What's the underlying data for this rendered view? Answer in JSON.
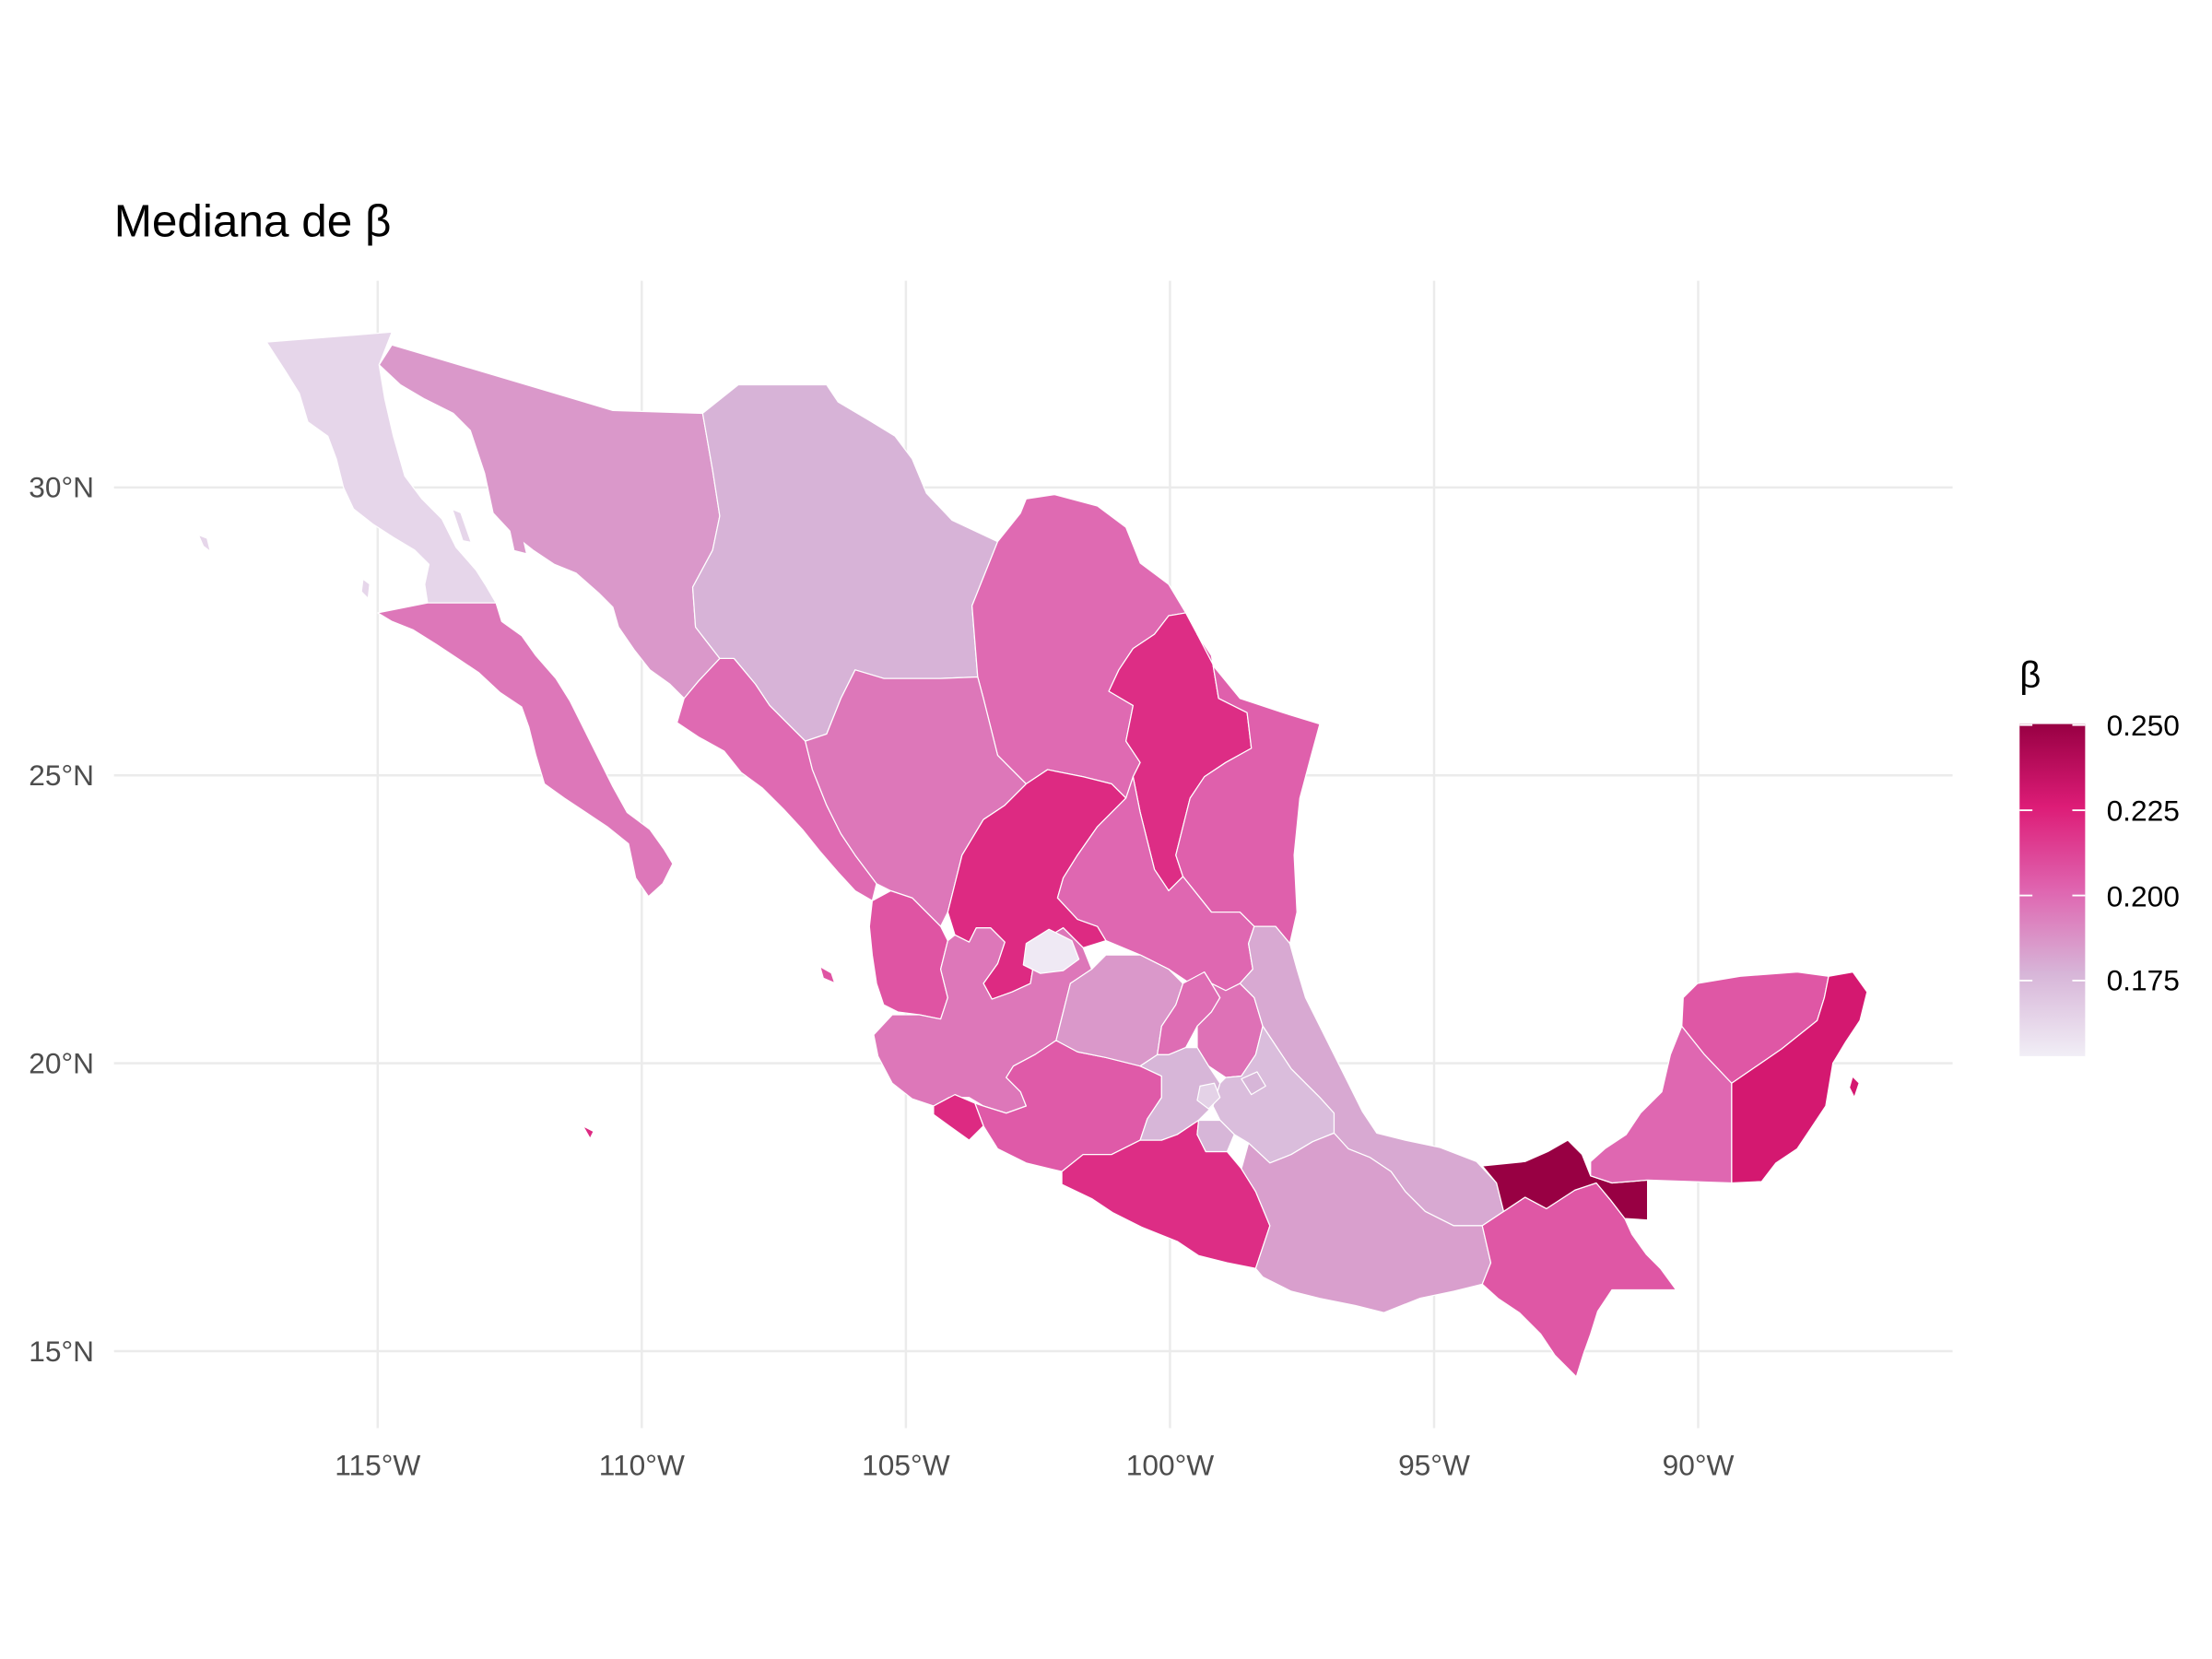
{
  "title": "Mediana de β",
  "axes": {
    "x_ticks": [
      "115°W",
      "110°W",
      "105°W",
      "100°W",
      "95°W",
      "90°W"
    ],
    "y_ticks": [
      "15°N",
      "20°N",
      "25°N",
      "30°N"
    ]
  },
  "legend": {
    "title": "β",
    "min": 0.153,
    "max": 0.25,
    "ticks": [
      0.175,
      0.2,
      0.225,
      0.25
    ],
    "tick_labels": [
      "0.175",
      "0.200",
      "0.225",
      "0.250"
    ],
    "colors": [
      "#f1eef6",
      "#d7b5d8",
      "#df65b0",
      "#dd1c77",
      "#980043"
    ]
  },
  "map_data": {
    "type": "choropleth",
    "grid": true,
    "lon_ticks": [
      -115,
      -110,
      -105,
      -100,
      -95,
      -90
    ],
    "lat_ticks": [
      15,
      20,
      25,
      30
    ],
    "beta_by_region": {
      "BC": 0.163,
      "BCS": 0.196,
      "SON": 0.186,
      "CHH": 0.178,
      "COA": 0.2,
      "NLE": 0.22,
      "TAM": 0.203,
      "SIN": 0.2,
      "DUR": 0.196,
      "ZAC": 0.221,
      "AGU": 0.155,
      "SLP": 0.201,
      "NAY": 0.207,
      "JAL": 0.196,
      "COL": 0.221,
      "MIC": 0.205,
      "GUA": 0.186,
      "QUE": 0.199,
      "HID": 0.198,
      "MEX": 0.177,
      "CMX": 0.165,
      "MOR": 0.177,
      "TLA": 0.177,
      "PUE": 0.174,
      "VER": 0.181,
      "GRO": 0.22,
      "OAX": 0.184,
      "CHP": 0.206,
      "TAB": 0.25,
      "CAM": 0.201,
      "YUC": 0.206,
      "ROO": 0.229
    }
  },
  "colors": {
    "background": "#ffffff",
    "grid": "#ebebeb",
    "border": "#ffffff",
    "axis_text": "#4d4d4d"
  }
}
